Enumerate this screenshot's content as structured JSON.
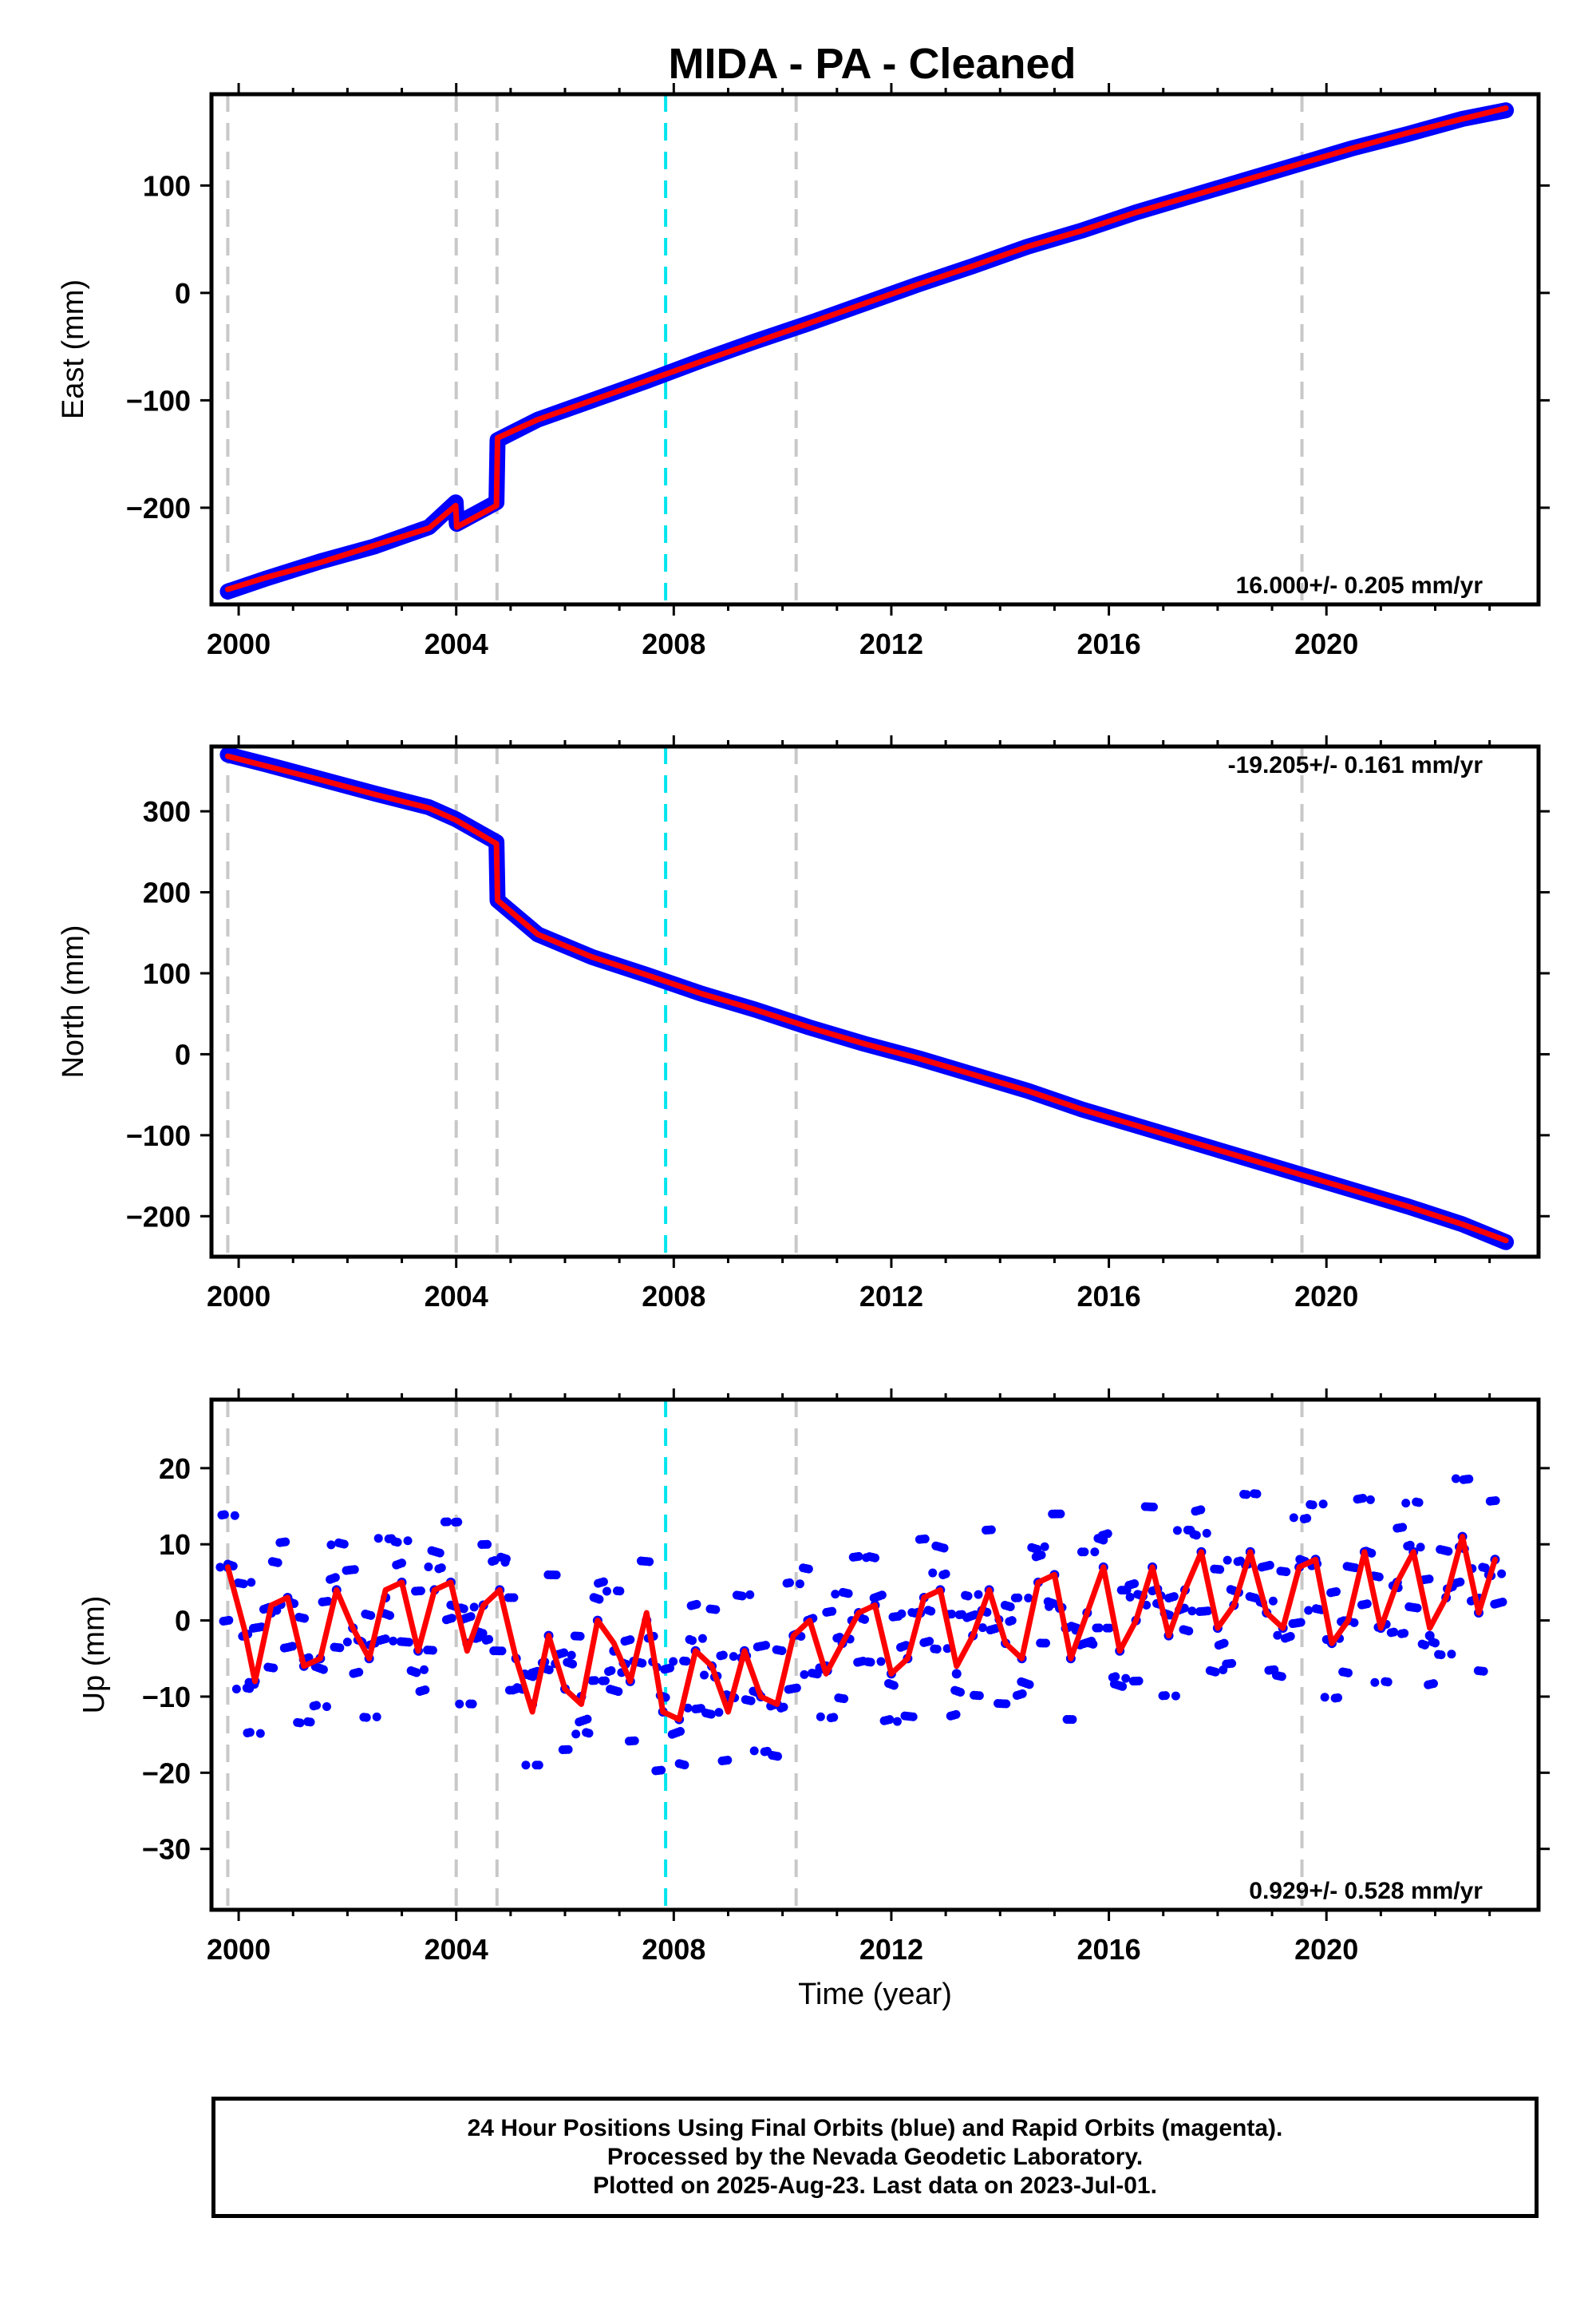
{
  "title": "MIDA  - PA - Cleaned",
  "colors": {
    "data": "#0000ff",
    "model": "#ff0000",
    "event_line": "#c8c8c8",
    "special_line": "#00e5ee",
    "frame": "#000000"
  },
  "chart_data": [
    {
      "type": "scatter",
      "ylabel": "East (mm)",
      "xlim": [
        1999.5,
        2023.9
      ],
      "ylim": [
        -290,
        185
      ],
      "yticks": [
        {
          "value": 100,
          "label": "100"
        },
        {
          "value": 0,
          "label": "0"
        },
        {
          "value": -100,
          "label": "−100"
        },
        {
          "value": -200,
          "label": "−200"
        }
      ],
      "xticks": [
        "2000",
        "2004",
        "2008",
        "2012",
        "2016",
        "2020"
      ],
      "rate": "16.000+/- 0.205 mm/yr",
      "rate_position": "bottom-right",
      "series": [
        {
          "role": "observations",
          "color": "#0000ff",
          "x": [
            1999.8,
            2000.5,
            2001.5,
            2002.5,
            2003.5,
            2003.99,
            2004.01,
            2004.74,
            2004.76,
            2005.5,
            2006.5,
            2007.5,
            2008.5,
            2009.5,
            2010.5,
            2011.5,
            2012.5,
            2013.5,
            2014.5,
            2015.5,
            2016.5,
            2017.5,
            2018.5,
            2019.5,
            2020.5,
            2021.5,
            2022.5,
            2023.3
          ],
          "y": [
            -278,
            -266,
            -250,
            -236,
            -218,
            -195,
            -215,
            -195,
            -137,
            -118,
            -100,
            -82,
            -63,
            -45,
            -28,
            -10,
            8,
            25,
            43,
            58,
            75,
            90,
            105,
            120,
            135,
            148,
            162,
            170
          ]
        },
        {
          "role": "model",
          "color": "#ff0000",
          "x": [
            1999.8,
            2000.5,
            2001.5,
            2002.5,
            2003.5,
            2003.99,
            2004.01,
            2004.74,
            2004.76,
            2005.5,
            2006.5,
            2007.5,
            2008.5,
            2009.5,
            2010.5,
            2011.5,
            2012.5,
            2013.5,
            2014.5,
            2015.5,
            2016.5,
            2017.5,
            2018.5,
            2019.5,
            2020.5,
            2021.5,
            2022.5,
            2023.3
          ],
          "y": [
            -276,
            -265,
            -251,
            -235,
            -219,
            -198,
            -218,
            -198,
            -135,
            -118,
            -100,
            -82,
            -64,
            -46,
            -28,
            -10,
            8,
            25,
            43,
            58,
            75,
            90,
            105,
            120,
            135,
            149,
            162,
            172
          ]
        }
      ]
    },
    {
      "type": "scatter",
      "ylabel": "North (mm)",
      "xlim": [
        1999.5,
        2023.9
      ],
      "ylim": [
        -250,
        380
      ],
      "yticks": [
        {
          "value": 300,
          "label": "300"
        },
        {
          "value": 200,
          "label": "200"
        },
        {
          "value": 100,
          "label": "100"
        },
        {
          "value": 0,
          "label": "0"
        },
        {
          "value": -100,
          "label": "−100"
        },
        {
          "value": -200,
          "label": "−200"
        }
      ],
      "xticks": [
        "2000",
        "2004",
        "2008",
        "2012",
        "2016",
        "2020"
      ],
      "rate": "-19.205+/- 0.161 mm/yr",
      "rate_position": "top-right",
      "series": [
        {
          "role": "observations",
          "color": "#0000ff",
          "x": [
            1999.8,
            2000.5,
            2001.5,
            2002.5,
            2003.5,
            2004.0,
            2004.74,
            2004.76,
            2005.5,
            2006.5,
            2007.5,
            2008.5,
            2009.5,
            2010.5,
            2011.5,
            2012.5,
            2013.5,
            2014.5,
            2015.5,
            2016.5,
            2017.5,
            2018.5,
            2019.5,
            2020.5,
            2021.5,
            2022.5,
            2023.3
          ],
          "y": [
            370,
            358,
            340,
            322,
            305,
            290,
            262,
            190,
            148,
            120,
            98,
            75,
            55,
            33,
            13,
            -5,
            -25,
            -45,
            -68,
            -88,
            -108,
            -128,
            -148,
            -168,
            -188,
            -210,
            -232
          ]
        },
        {
          "role": "model",
          "color": "#ff0000",
          "x": [
            1999.8,
            2000.5,
            2001.5,
            2002.5,
            2003.5,
            2004.0,
            2004.74,
            2004.76,
            2005.5,
            2006.5,
            2007.5,
            2008.5,
            2009.5,
            2010.5,
            2011.5,
            2012.5,
            2013.5,
            2014.5,
            2015.5,
            2016.5,
            2017.5,
            2018.5,
            2019.5,
            2020.5,
            2021.5,
            2022.5,
            2023.3
          ],
          "y": [
            368,
            356,
            339,
            321,
            304,
            289,
            260,
            190,
            148,
            120,
            98,
            75,
            55,
            33,
            13,
            -5,
            -25,
            -45,
            -68,
            -88,
            -108,
            -128,
            -148,
            -168,
            -188,
            -210,
            -230
          ]
        }
      ]
    },
    {
      "type": "scatter",
      "ylabel": "Up (mm)",
      "xlabel": "Time (year)",
      "xlim": [
        1999.5,
        2023.9
      ],
      "ylim": [
        -38,
        29
      ],
      "yticks": [
        {
          "value": 20,
          "label": "20"
        },
        {
          "value": 10,
          "label": "10"
        },
        {
          "value": 0,
          "label": "0"
        },
        {
          "value": -10,
          "label": "−10"
        },
        {
          "value": -20,
          "label": "−20"
        },
        {
          "value": -30,
          "label": "−30"
        }
      ],
      "xticks": [
        "2000",
        "2004",
        "2008",
        "2012",
        "2016",
        "2020"
      ],
      "rate": "0.929+/- 0.528 mm/yr",
      "rate_position": "bottom-right",
      "series": [
        {
          "role": "observations",
          "color": "#0000ff",
          "x": [
            1999.8,
            2000.1,
            2000.3,
            2000.6,
            2000.9,
            2001.2,
            2001.5,
            2001.8,
            2002.1,
            2002.4,
            2002.7,
            2003.0,
            2003.3,
            2003.6,
            2003.9,
            2004.2,
            2004.5,
            2004.8,
            2005.1,
            2005.4,
            2005.7,
            2006.0,
            2006.3,
            2006.6,
            2006.9,
            2007.2,
            2007.5,
            2007.8,
            2008.1,
            2008.4,
            2008.7,
            2009.0,
            2009.3,
            2009.6,
            2009.9,
            2010.2,
            2010.5,
            2010.8,
            2011.1,
            2011.4,
            2011.7,
            2012.0,
            2012.3,
            2012.6,
            2012.9,
            2013.2,
            2013.5,
            2013.8,
            2014.1,
            2014.4,
            2014.7,
            2015.0,
            2015.3,
            2015.6,
            2015.9,
            2016.2,
            2016.5,
            2016.8,
            2017.1,
            2017.4,
            2017.7,
            2018.0,
            2018.3,
            2018.6,
            2018.9,
            2019.2,
            2019.5,
            2019.8,
            2020.1,
            2020.4,
            2020.7,
            2021.0,
            2021.3,
            2021.6,
            2021.9,
            2022.2,
            2022.5,
            2022.8,
            2023.1
          ],
          "y": [
            7,
            -2,
            -8,
            1,
            3,
            -6,
            -5,
            4,
            -1,
            -5,
            3,
            5,
            -4,
            4,
            5,
            -3,
            2,
            4,
            -5,
            -11,
            -2,
            -9,
            -10,
            0,
            -4,
            -8,
            0,
            -12,
            -13,
            -4,
            -6,
            -11,
            -4,
            -10,
            -11,
            -2,
            0,
            -6,
            -3,
            1,
            2,
            -7,
            -5,
            3,
            4,
            -7,
            -2,
            4,
            -3,
            -5,
            5,
            6,
            -5,
            1,
            7,
            -4,
            0,
            7,
            -2,
            4,
            9,
            -1,
            2,
            9,
            1,
            -1,
            7,
            8,
            -3,
            0,
            9,
            -1,
            5,
            9,
            -2,
            3,
            11,
            1,
            8
          ]
        },
        {
          "role": "model",
          "color": "#ff0000",
          "x": [
            1999.8,
            2000.1,
            2000.3,
            2000.6,
            2000.9,
            2001.2,
            2001.5,
            2001.8,
            2002.1,
            2002.4,
            2002.7,
            2003.0,
            2003.3,
            2003.6,
            2003.9,
            2004.2,
            2004.5,
            2004.8,
            2005.1,
            2005.4,
            2005.7,
            2006.0,
            2006.3,
            2006.6,
            2006.9,
            2007.2,
            2007.5,
            2007.8,
            2008.1,
            2008.4,
            2008.7,
            2009.0,
            2009.3,
            2009.6,
            2009.9,
            2010.2,
            2010.5,
            2010.8,
            2011.1,
            2011.4,
            2011.7,
            2012.0,
            2012.3,
            2012.6,
            2012.9,
            2013.2,
            2013.5,
            2013.8,
            2014.1,
            2014.4,
            2014.7,
            2015.0,
            2015.3,
            2015.6,
            2015.9,
            2016.2,
            2016.5,
            2016.8,
            2017.1,
            2017.4,
            2017.7,
            2018.0,
            2018.3,
            2018.6,
            2018.9,
            2019.2,
            2019.5,
            2019.8,
            2020.1,
            2020.4,
            2020.7,
            2021.0,
            2021.3,
            2021.6,
            2021.9,
            2022.2,
            2022.5,
            2022.8,
            2023.1
          ],
          "y": [
            7,
            -1,
            -8,
            2,
            3,
            -6,
            -5,
            4,
            -1,
            -5,
            4,
            5,
            -4,
            4,
            5,
            -4,
            2,
            4,
            -5,
            -12,
            -2,
            -9,
            -11,
            0,
            -3,
            -8,
            1,
            -12,
            -13,
            -4,
            -6,
            -12,
            -4,
            -10,
            -11,
            -2,
            0,
            -7,
            -3,
            1,
            2,
            -7,
            -5,
            3,
            4,
            -6,
            -2,
            4,
            -3,
            -5,
            5,
            6,
            -5,
            1,
            7,
            -4,
            0,
            7,
            -2,
            4,
            9,
            -1,
            2,
            9,
            1,
            -1,
            7,
            8,
            -3,
            0,
            9,
            -1,
            5,
            9,
            -1,
            3,
            11,
            1,
            8
          ]
        }
      ]
    }
  ],
  "footer": {
    "line1": "24 Hour Positions Using Final Orbits (blue) and Rapid Orbits (magenta).",
    "line2": "Processed by the Nevada Geodetic Laboratory.",
    "line3": "Plotted on 2025-Aug-23. Last data on 2023-Jul-01."
  }
}
